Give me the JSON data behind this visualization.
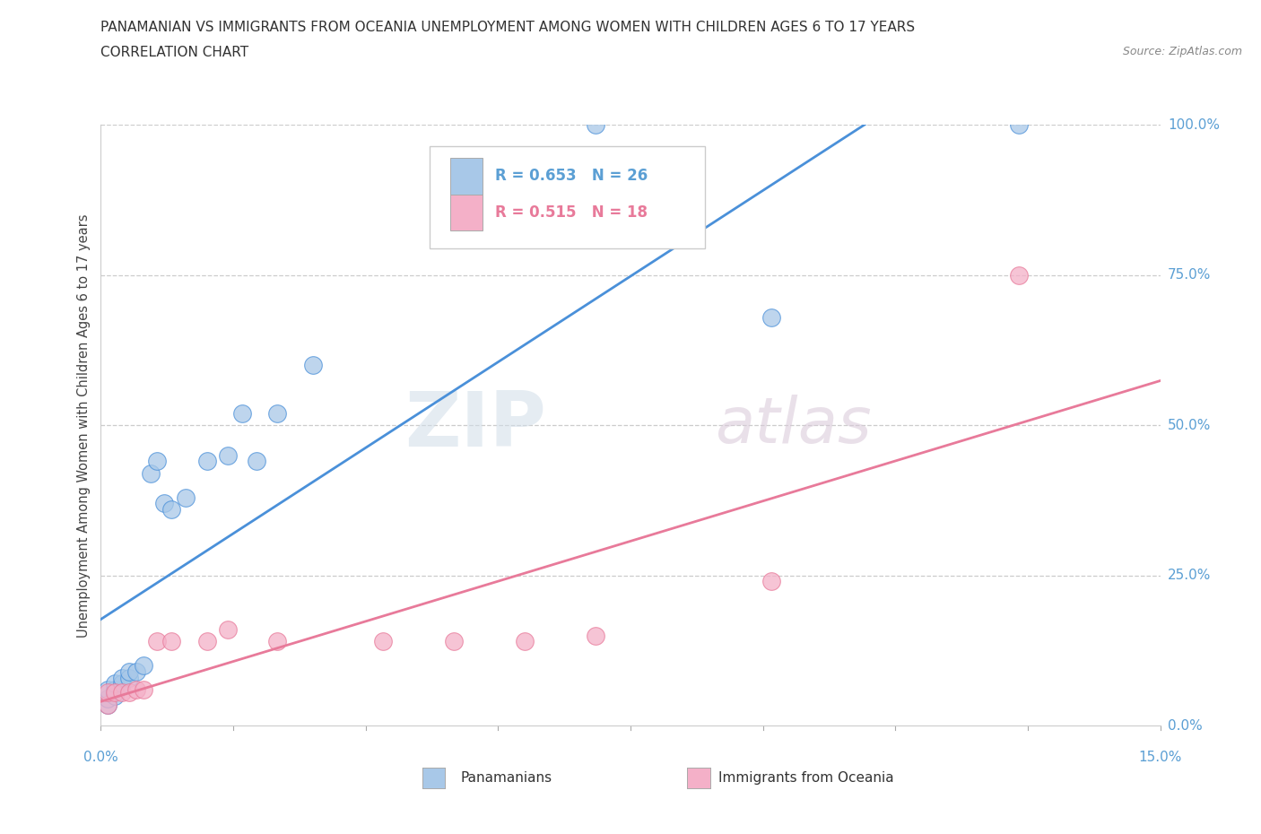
{
  "title_line1": "PANAMANIAN VS IMMIGRANTS FROM OCEANIA UNEMPLOYMENT AMONG WOMEN WITH CHILDREN AGES 6 TO 17 YEARS",
  "title_line2": "CORRELATION CHART",
  "source": "Source: ZipAtlas.com",
  "watermark_zip": "ZIP",
  "watermark_atlas": "atlas",
  "legend_blue_R": "0.653",
  "legend_blue_N": "26",
  "legend_pink_R": "0.515",
  "legend_pink_N": "18",
  "blue_color": "#a8c8e8",
  "pink_color": "#f4b0c8",
  "blue_line_color": "#4a90d9",
  "pink_line_color": "#e87a9a",
  "label_color": "#5b9fd4",
  "ylabel_right": [
    "0.0%",
    "25.0%",
    "50.0%",
    "75.0%",
    "100.0%"
  ],
  "xmin": 0.0,
  "xmax": 0.15,
  "ymin": 0.0,
  "ymax": 1.0,
  "blue_x": [
    0.001,
    0.001,
    0.001,
    0.002,
    0.002,
    0.002,
    0.003,
    0.003,
    0.004,
    0.004,
    0.005,
    0.006,
    0.007,
    0.008,
    0.009,
    0.01,
    0.012,
    0.015,
    0.018,
    0.02,
    0.022,
    0.025,
    0.03,
    0.07,
    0.095,
    0.13
  ],
  "blue_y": [
    0.035,
    0.045,
    0.06,
    0.05,
    0.06,
    0.07,
    0.07,
    0.08,
    0.08,
    0.09,
    0.09,
    0.1,
    0.42,
    0.44,
    0.37,
    0.36,
    0.38,
    0.44,
    0.45,
    0.52,
    0.44,
    0.52,
    0.6,
    1.0,
    0.68,
    1.0
  ],
  "pink_x": [
    0.001,
    0.001,
    0.002,
    0.003,
    0.004,
    0.005,
    0.006,
    0.008,
    0.01,
    0.015,
    0.018,
    0.025,
    0.04,
    0.05,
    0.06,
    0.07,
    0.095,
    0.13
  ],
  "pink_y": [
    0.035,
    0.055,
    0.055,
    0.055,
    0.055,
    0.06,
    0.06,
    0.14,
    0.14,
    0.14,
    0.16,
    0.14,
    0.14,
    0.14,
    0.14,
    0.15,
    0.24,
    0.75
  ]
}
